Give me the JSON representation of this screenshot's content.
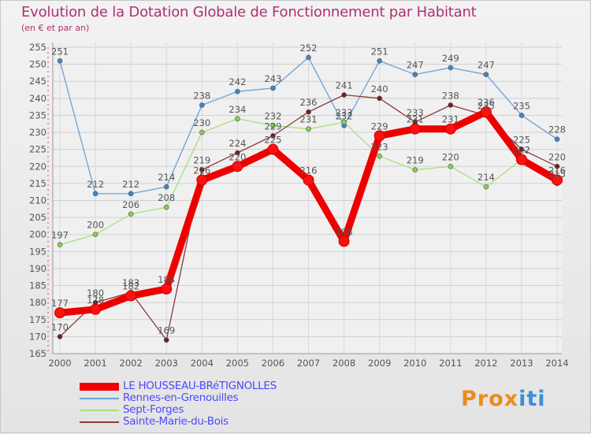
{
  "title": "Evolution de la Dotation Globale de Fonctionnement par Habitant",
  "subtitle": "(en € et par an)",
  "logo_text": "Proxiti",
  "chart_data": {
    "type": "line",
    "title": "Evolution de la Dotation Globale de Fonctionnement par Habitant",
    "subtitle": "(en € et par an)",
    "xlabel": "",
    "ylabel": "",
    "ylim": [
      165,
      255
    ],
    "ytick_step": 5,
    "grid": true,
    "x": [
      "2000",
      "2001",
      "2002",
      "2003",
      "2004",
      "2005",
      "2006",
      "2007",
      "2008",
      "2009",
      "2010",
      "2011",
      "2012",
      "2013",
      "2014"
    ],
    "legend_position": "bottom-left",
    "series": [
      {
        "name": "Rennes-en-Grenouilles",
        "color": "#6aa2d8",
        "marker_color": "#3f86c8",
        "values": [
          251,
          212,
          212,
          214,
          238,
          242,
          243,
          252,
          232,
          251,
          247,
          249,
          247,
          235,
          228
        ]
      },
      {
        "name": "Sept-Forges",
        "color": "#a6e07a",
        "marker_color": "#84d24a",
        "values": [
          197,
          200,
          206,
          208,
          230,
          234,
          232,
          231,
          233,
          223,
          219,
          220,
          214,
          222,
          215
        ]
      },
      {
        "name": "Sainte-Marie-du-Bois",
        "color": "#8a3a3a",
        "marker_color": "#6e1f1f",
        "values": [
          170,
          180,
          183,
          169,
          219,
          224,
          229,
          236,
          241,
          240,
          233,
          238,
          235,
          225,
          220
        ]
      },
      {
        "name": "LE HOUSSEAU-BRéTIGNOLLES",
        "color": "#ee0000",
        "marker_color": "#ff1010",
        "values": [
          177,
          178,
          182,
          184,
          216,
          220,
          225,
          216,
          198,
          229,
          231,
          231,
          236,
          222,
          216
        ]
      }
    ],
    "legend": [
      "LE HOUSSEAU-BRéTIGNOLLES",
      "Rennes-en-Grenouilles",
      "Sept-Forges",
      "Sainte-Marie-du-Bois"
    ]
  }
}
